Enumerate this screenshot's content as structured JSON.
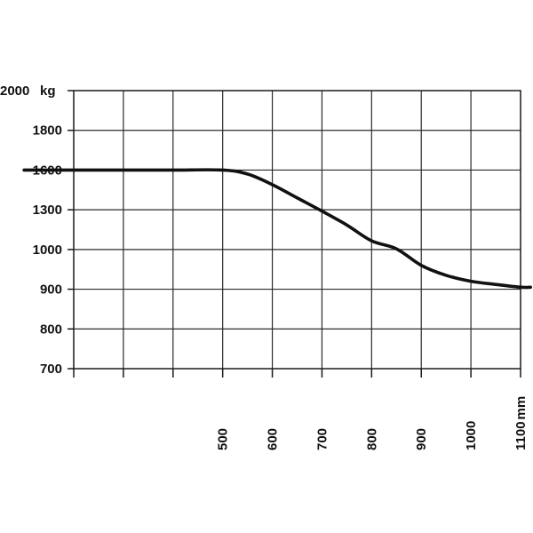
{
  "chart_data": {
    "type": "line",
    "title": "",
    "xlabel": "",
    "ylabel": "",
    "y_ticks": [
      "2000",
      "1800",
      "1600",
      "1300",
      "1000",
      "900",
      "800",
      "700"
    ],
    "y_unit": "kg",
    "x_ticks": [
      "500",
      "600",
      "700",
      "800",
      "900",
      "1000",
      "1100"
    ],
    "x_unit": "mm",
    "grid": true,
    "series": [
      {
        "x": [
          100,
          200,
          300,
          400,
          500,
          550,
          600,
          650,
          700,
          750,
          800,
          850,
          900,
          950,
          1000,
          1050,
          1100,
          1120
        ],
        "y": [
          1600,
          1600,
          1600,
          1600,
          1600,
          1570,
          1490,
          1390,
          1290,
          1185,
          1065,
          1005,
          960,
          935,
          920,
          912,
          905,
          905
        ]
      }
    ]
  }
}
